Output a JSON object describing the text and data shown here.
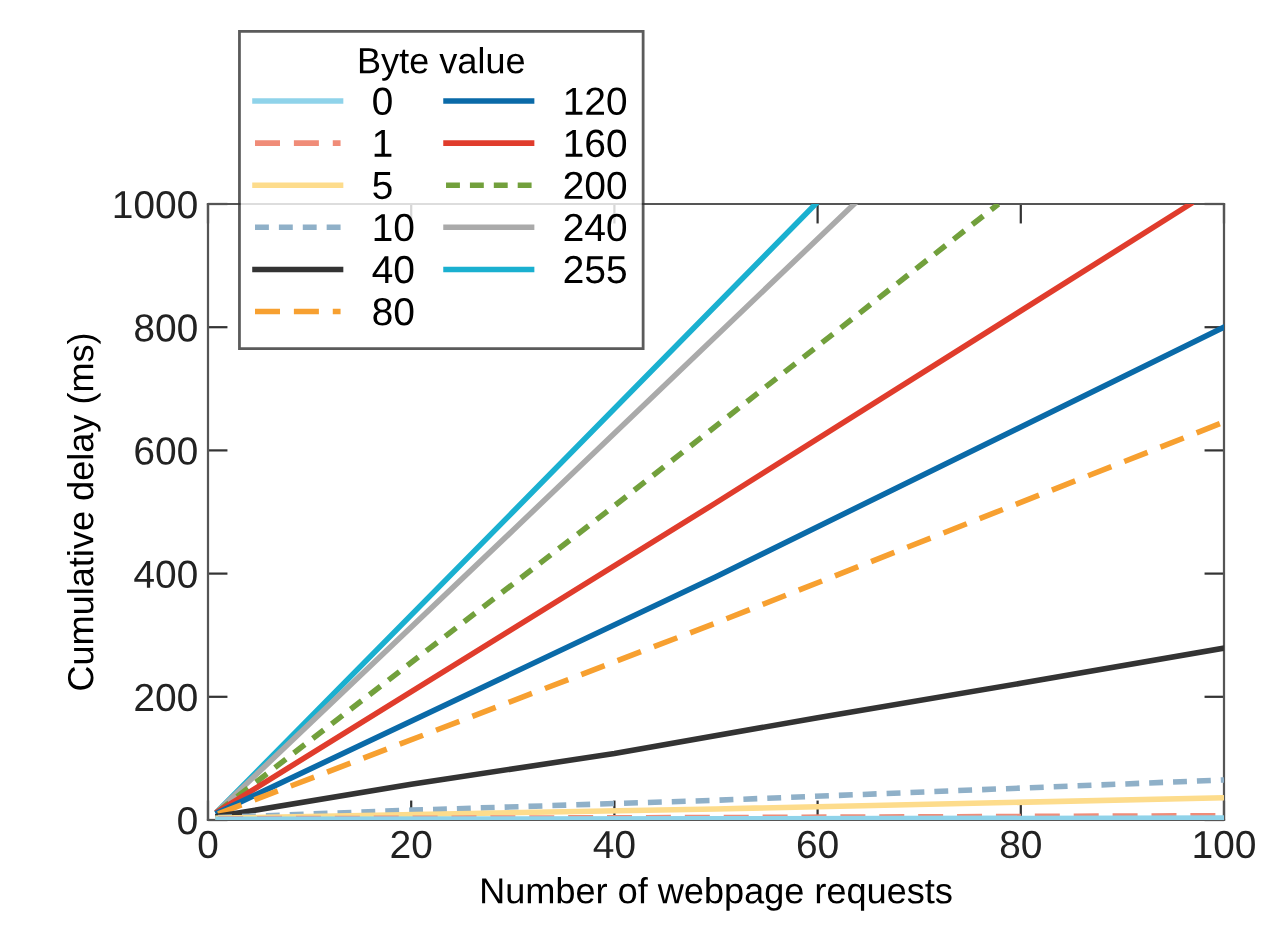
{
  "chart_data": {
    "type": "line",
    "xlabel": "Number of webpage requests",
    "ylabel": "Cumulative delay (ms)",
    "legend_title": "Byte value",
    "legend": "top left",
    "grid": false,
    "xlim": [
      0,
      100
    ],
    "ylim": [
      0,
      1000
    ],
    "xticks": [
      0,
      20,
      40,
      60,
      80,
      100
    ],
    "yticks": [
      0,
      200,
      400,
      600,
      800,
      1000
    ],
    "series": [
      {
        "name": "0",
        "color": "#8fd3ea",
        "line_style": "solid",
        "x": [
          1,
          50,
          100
        ],
        "values": [
          1,
          2,
          3
        ]
      },
      {
        "name": "1",
        "color": "#f08c78",
        "line_style": "dashed",
        "x": [
          1,
          50,
          100
        ],
        "values": [
          2,
          4,
          7
        ]
      },
      {
        "name": "5",
        "color": "#fddc8c",
        "line_style": "solid",
        "x": [
          1,
          50,
          100
        ],
        "values": [
          3,
          18,
          36
        ]
      },
      {
        "name": "10",
        "color": "#8fb0c8",
        "line_style": "dotted",
        "x": [
          1,
          20,
          50,
          100
        ],
        "values": [
          4,
          16,
          32,
          65
        ]
      },
      {
        "name": "40",
        "color": "#333333",
        "line_style": "solid",
        "x": [
          1,
          20,
          40,
          60,
          80,
          100
        ],
        "values": [
          6,
          58,
          108,
          166,
          222,
          279
        ]
      },
      {
        "name": "80",
        "color": "#f7a030",
        "line_style": "dashed",
        "x": [
          1,
          50,
          100
        ],
        "values": [
          10,
          320,
          646
        ]
      },
      {
        "name": "120",
        "color": "#0a6aa8",
        "line_style": "solid",
        "x": [
          1,
          50,
          100
        ],
        "values": [
          12,
          395,
          800
        ]
      },
      {
        "name": "160",
        "color": "#e03c2c",
        "line_style": "solid",
        "x": [
          1,
          50,
          96.7
        ],
        "values": [
          14,
          515,
          1000
        ]
      },
      {
        "name": "200",
        "color": "#72a03c",
        "line_style": "dotted",
        "x": [
          1,
          40,
          77.8
        ],
        "values": [
          14,
          510,
          1000
        ]
      },
      {
        "name": "240",
        "color": "#aaaaaa",
        "line_style": "solid",
        "x": [
          1,
          30,
          63.6
        ],
        "values": [
          15,
          470,
          1000
        ]
      },
      {
        "name": "255",
        "color": "#1ab0d0",
        "line_style": "solid",
        "x": [
          1,
          30,
          59.8
        ],
        "values": [
          15,
          500,
          1000
        ]
      }
    ]
  }
}
